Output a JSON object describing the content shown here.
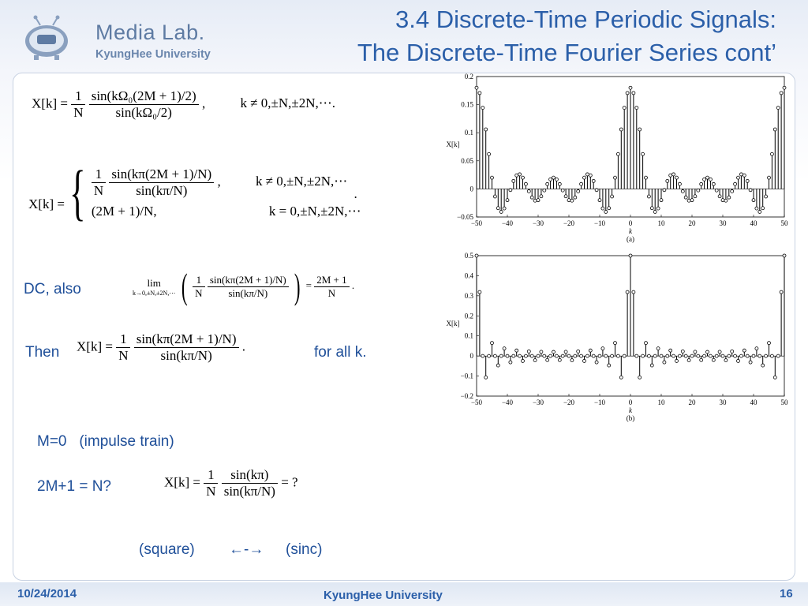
{
  "logo": {
    "name": "Media Lab.",
    "university": "KyungHee University"
  },
  "title": {
    "line1": "3.4 Discrete-Time Periodic Signals:",
    "line2": "The Discrete-Time Fourier Series cont’"
  },
  "labels": {
    "dc_also": "DC, also",
    "then": "Then",
    "for_all_k": "for all k.",
    "m0": "M=0   (impulse train)",
    "two_m": "2M+1 = N?",
    "square": "(square)",
    "arrows": "←-→",
    "sinc": "(sinc)"
  },
  "equations": {
    "eq1": {
      "lhs": "X[k] =",
      "num": "1",
      "den": "N",
      "num2": "sin(kΩ₀(2M + 1)/2)",
      "den2": "sin(kΩ₀/2)",
      "cond": "k ≠ 0,±N,±2N,⋯."
    },
    "eq2": {
      "lhs": "X[k] =",
      "case1_num": "sin(kπ(2M + 1)/N)",
      "case1_den": "sin(kπ/N)",
      "case1_cond": "k ≠ 0,±N,±2N,⋯",
      "case2": "(2M + 1)/N,",
      "case2_cond": "k = 0,±N,±2N,⋯",
      "one": "1",
      "N": "N"
    },
    "eq3": {
      "lim": "lim",
      "lim_sub": "k→0,±N,±2N,⋯",
      "num": "sin(kπ(2M + 1)/N)",
      "den": "sin(kπ/N)",
      "rhs_num": "2M + 1",
      "rhs_den": "N",
      "one": "1",
      "N": "N"
    },
    "eq4": {
      "lhs": "X[k] =",
      "num": "sin(kπ(2M + 1)/N)",
      "den": "sin(kπ/N)",
      "one": "1",
      "N": "N"
    },
    "eq5": {
      "lhs": "X[k] =",
      "num": "sin(kπ)",
      "den": "sin(kπ/N)",
      "rhs": "= ?",
      "one": "1",
      "N": "N"
    }
  },
  "footer": {
    "date": "10/24/2014",
    "center": "KyungHee University",
    "page": "16"
  },
  "chart_data": [
    {
      "type": "bar",
      "caption": "(a)",
      "xlabel": "k",
      "ylabel": "X[k]",
      "xlim": [
        -50,
        50
      ],
      "ylim": [
        -0.05,
        0.2
      ],
      "xticks": [
        "−50",
        "−40",
        "−30",
        "−20",
        "−10",
        "0",
        "10",
        "20",
        "30",
        "40",
        "50"
      ],
      "yticks": [
        "0.2",
        "0.15",
        "0.1",
        "0.05",
        "0",
        "−0.05"
      ],
      "N": 50,
      "M": 4
    },
    {
      "type": "bar",
      "caption": "(b)",
      "xlabel": "k",
      "ylabel": "X[k]",
      "xlim": [
        -50,
        50
      ],
      "ylim": [
        -0.2,
        0.5
      ],
      "xticks": [
        "−50",
        "−40",
        "−30",
        "−20",
        "−10",
        "0",
        "10",
        "20",
        "30",
        "40",
        "50"
      ],
      "yticks": [
        "0.5",
        "0.4",
        "0.3",
        "0.2",
        "0.1",
        "0",
        "−0.1",
        "−0.2"
      ],
      "N": 50,
      "M": 12
    }
  ]
}
